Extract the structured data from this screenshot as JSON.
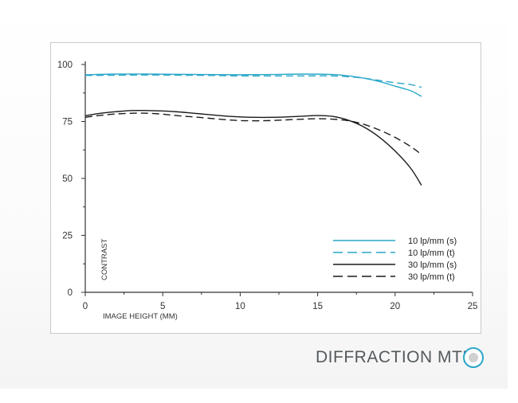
{
  "caption": "DIFFRACTION MTF",
  "indicator_icon": "radio-indicator-icon",
  "chart_data": {
    "type": "line",
    "xlabel": "IMAGE HEIGHT (MM)",
    "ylabel": "CONTRAST",
    "xlim": [
      0,
      25
    ],
    "ylim": [
      0,
      100
    ],
    "xticks": [
      "0",
      "5",
      "10",
      "15",
      "20",
      "25"
    ],
    "yticks": [
      "0",
      "25",
      "50",
      "75",
      "100"
    ],
    "grid": false,
    "legend_position": "bottom-right",
    "series": [
      {
        "name": "10 lp/mm (s)",
        "color": "#2aa7c9",
        "dash": "solid",
        "points": [
          [
            0,
            95.5
          ],
          [
            2,
            95.8
          ],
          [
            4,
            95.8
          ],
          [
            6,
            95.7
          ],
          [
            8,
            95.6
          ],
          [
            10,
            95.5
          ],
          [
            12,
            95.6
          ],
          [
            14,
            95.8
          ],
          [
            16,
            95.6
          ],
          [
            17,
            95.0
          ],
          [
            18,
            94.0
          ],
          [
            19,
            92.5
          ],
          [
            20,
            90.5
          ],
          [
            21,
            88.5
          ],
          [
            21.7,
            86.0
          ]
        ]
      },
      {
        "name": "10 lp/mm (t)",
        "color": "#2aa7c9",
        "dash": "dashed",
        "points": [
          [
            0,
            95.2
          ],
          [
            2,
            95.3
          ],
          [
            4,
            95.4
          ],
          [
            6,
            95.3
          ],
          [
            8,
            95.2
          ],
          [
            10,
            95.0
          ],
          [
            12,
            95.0
          ],
          [
            14,
            95.0
          ],
          [
            16,
            95.0
          ],
          [
            17,
            94.6
          ],
          [
            18,
            94.0
          ],
          [
            19,
            93.0
          ],
          [
            20,
            92.0
          ],
          [
            21,
            91.2
          ],
          [
            21.7,
            90.0
          ]
        ]
      },
      {
        "name": "30 lp/mm (s)",
        "color": "#1a1a1a",
        "dash": "solid",
        "points": [
          [
            0,
            77.5
          ],
          [
            1,
            78.6
          ],
          [
            2,
            79.3
          ],
          [
            3,
            79.8
          ],
          [
            4,
            79.8
          ],
          [
            5,
            79.6
          ],
          [
            6,
            79.2
          ],
          [
            7,
            78.6
          ],
          [
            8,
            78.0
          ],
          [
            9,
            77.4
          ],
          [
            10,
            77.0
          ],
          [
            11,
            76.8
          ],
          [
            12,
            76.8
          ],
          [
            13,
            77.0
          ],
          [
            14,
            77.3
          ],
          [
            15,
            77.6
          ],
          [
            16,
            77.2
          ],
          [
            17,
            75.5
          ],
          [
            18,
            72.5
          ],
          [
            19,
            68.0
          ],
          [
            20,
            62.0
          ],
          [
            21,
            54.5
          ],
          [
            21.7,
            47.0
          ]
        ]
      },
      {
        "name": "30 lp/mm (t)",
        "color": "#1a1a1a",
        "dash": "dashed",
        "points": [
          [
            0,
            76.8
          ],
          [
            1,
            77.7
          ],
          [
            2,
            78.3
          ],
          [
            3,
            78.6
          ],
          [
            4,
            78.6
          ],
          [
            5,
            78.2
          ],
          [
            6,
            77.5
          ],
          [
            7,
            77.0
          ],
          [
            8,
            76.4
          ],
          [
            9,
            75.8
          ],
          [
            10,
            75.4
          ],
          [
            11,
            75.3
          ],
          [
            12,
            75.4
          ],
          [
            13,
            75.7
          ],
          [
            14,
            76.0
          ],
          [
            15,
            76.2
          ],
          [
            16,
            76.0
          ],
          [
            17,
            75.3
          ],
          [
            18,
            73.7
          ],
          [
            19,
            71.2
          ],
          [
            20,
            68.0
          ],
          [
            21,
            64.0
          ],
          [
            21.7,
            60.5
          ]
        ]
      }
    ]
  }
}
